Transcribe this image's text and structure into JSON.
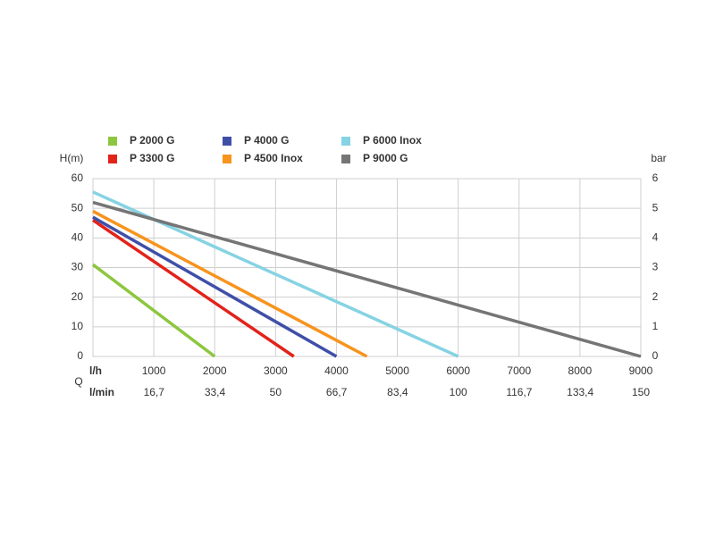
{
  "chart_data": {
    "type": "line",
    "ylabel": "H(m)",
    "y2label": "bar",
    "xaxis_title": "Q",
    "xlabel": "l/h",
    "x2label": "l/min",
    "xlim": [
      0,
      9000
    ],
    "xticks": [
      1000,
      2000,
      3000,
      4000,
      5000,
      6000,
      7000,
      8000,
      9000
    ],
    "x2lim": [
      0,
      150
    ],
    "x2ticks": [
      {
        "value": 16.7,
        "label": "16,7"
      },
      {
        "value": 33.4,
        "label": "33,4"
      },
      50,
      {
        "value": 66.7,
        "label": "66,7"
      },
      {
        "value": 83.4,
        "label": "83,4"
      },
      100,
      {
        "value": 116.7,
        "label": "116,7"
      },
      {
        "value": 133.4,
        "label": "133,4"
      },
      150
    ],
    "ylim": [
      0,
      60
    ],
    "yticks": [
      0,
      10,
      20,
      30,
      40,
      50,
      60
    ],
    "y2lim": [
      0,
      6
    ],
    "y2ticks": [
      0,
      1,
      2,
      3,
      4,
      5,
      6
    ],
    "grid": true,
    "series": [
      {
        "name": "P 2000 G",
        "color": "#8dc63f",
        "x": [
          0,
          2000
        ],
        "values": [
          31,
          0
        ]
      },
      {
        "name": "P 3300 G",
        "color": "#e2231a",
        "x": [
          0,
          3300
        ],
        "values": [
          46,
          0
        ]
      },
      {
        "name": "P 4000 G",
        "color": "#3f4fa8",
        "x": [
          0,
          4000
        ],
        "values": [
          47,
          0
        ]
      },
      {
        "name": "P 4500 Inox",
        "color": "#f7941d",
        "x": [
          0,
          4500
        ],
        "values": [
          49,
          0
        ]
      },
      {
        "name": "P 6000 Inox",
        "color": "#85d3e3",
        "x": [
          0,
          6000
        ],
        "values": [
          55.5,
          0
        ]
      },
      {
        "name": "P 9000 G",
        "color": "#757575",
        "x": [
          0,
          9000
        ],
        "values": [
          52,
          0
        ]
      }
    ]
  }
}
